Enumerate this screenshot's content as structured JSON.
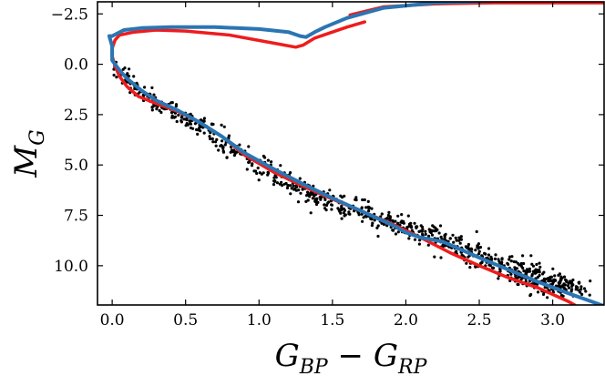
{
  "chart_data": {
    "type": "scatter",
    "title": "",
    "xlabel": "G_BP − G_RP",
    "ylabel": "M_G",
    "xlabel_parts": [
      "G",
      "BP",
      " − ",
      "G",
      "RP"
    ],
    "ylabel_parts": [
      "M",
      "G"
    ],
    "xlim": [
      -0.1,
      3.35
    ],
    "ylim": [
      11.95,
      -3.1
    ],
    "y_inverted": true,
    "grid": false,
    "x_ticks": [
      0.0,
      0.5,
      1.0,
      1.5,
      2.0,
      2.5,
      3.0
    ],
    "x_tick_labels": [
      "0.0",
      "0.5",
      "1.0",
      "1.5",
      "2.0",
      "2.5",
      "3.0"
    ],
    "y_ticks": [
      -2.5,
      0.0,
      2.5,
      5.0,
      7.5,
      10.0
    ],
    "y_tick_labels": [
      "−2.5",
      "0.0",
      "2.5",
      "5.0",
      "7.5",
      "10.0"
    ],
    "series": [
      {
        "name": "stars",
        "kind": "scatter",
        "color": "#000000",
        "ridge": [
          [
            0.02,
            -0.2
          ],
          [
            0.05,
            0.3
          ],
          [
            0.1,
            0.9
          ],
          [
            0.2,
            1.6
          ],
          [
            0.35,
            2.2
          ],
          [
            0.5,
            2.7
          ],
          [
            0.65,
            3.3
          ],
          [
            0.8,
            4.3
          ],
          [
            1.0,
            5.2
          ],
          [
            1.2,
            6.0
          ],
          [
            1.4,
            6.7
          ],
          [
            1.7,
            7.5
          ],
          [
            2.0,
            8.2
          ],
          [
            2.3,
            9.0
          ],
          [
            2.6,
            9.9
          ],
          [
            2.8,
            10.5
          ],
          [
            3.0,
            11.0
          ],
          [
            3.05,
            11.2
          ]
        ],
        "count": 900,
        "seed": 7
      },
      {
        "name": "isochrone-red",
        "kind": "line",
        "color": "#ee1c1c",
        "points": [
          [
            1.72,
            -2.1
          ],
          [
            1.6,
            -1.85
          ],
          [
            1.48,
            -1.55
          ],
          [
            1.38,
            -1.3
          ],
          [
            1.3,
            -0.95
          ],
          [
            1.25,
            -0.85
          ],
          [
            1.1,
            -1.05
          ],
          [
            0.8,
            -1.45
          ],
          [
            0.5,
            -1.65
          ],
          [
            0.3,
            -1.7
          ],
          [
            0.15,
            -1.6
          ],
          [
            0.05,
            -1.45
          ],
          [
            0.02,
            -1.2
          ],
          [
            0.0,
            -0.8
          ],
          [
            0.0,
            -0.4
          ],
          [
            0.02,
            0.1
          ],
          [
            0.05,
            0.6
          ],
          [
            0.1,
            1.1
          ],
          [
            0.18,
            1.6
          ],
          [
            0.3,
            1.95
          ],
          [
            0.45,
            2.35
          ],
          [
            0.6,
            2.9
          ],
          [
            0.75,
            3.6
          ],
          [
            0.9,
            4.5
          ],
          [
            1.1,
            5.35
          ],
          [
            1.3,
            6.05
          ],
          [
            1.5,
            6.7
          ],
          [
            1.7,
            7.3
          ],
          [
            1.9,
            7.9
          ],
          [
            2.1,
            8.6
          ],
          [
            2.3,
            9.35
          ],
          [
            2.5,
            10.0
          ],
          [
            2.7,
            10.6
          ],
          [
            2.9,
            11.1
          ],
          [
            3.1,
            11.75
          ],
          [
            3.15,
            11.95
          ]
        ]
      },
      {
        "name": "isochrone-red-giant",
        "kind": "line",
        "color": "#ee1c1c",
        "points": [
          [
            1.62,
            -2.45
          ],
          [
            1.85,
            -2.85
          ],
          [
            2.2,
            -3.0
          ],
          [
            2.6,
            -3.05
          ],
          [
            3.0,
            -3.05
          ],
          [
            3.35,
            -3.05
          ]
        ]
      },
      {
        "name": "isochrone-blue",
        "kind": "line",
        "color": "#2b75b3",
        "points": [
          [
            3.35,
            -3.2
          ],
          [
            3.0,
            -3.2
          ],
          [
            2.6,
            -3.15
          ],
          [
            2.2,
            -3.05
          ],
          [
            1.85,
            -2.8
          ],
          [
            1.6,
            -2.3
          ],
          [
            1.45,
            -1.85
          ],
          [
            1.38,
            -1.6
          ],
          [
            1.32,
            -1.35
          ],
          [
            1.28,
            -1.4
          ],
          [
            1.2,
            -1.6
          ],
          [
            1.0,
            -1.75
          ],
          [
            0.7,
            -1.85
          ],
          [
            0.4,
            -1.85
          ],
          [
            0.2,
            -1.8
          ],
          [
            0.08,
            -1.7
          ],
          [
            0.0,
            -1.4
          ],
          [
            -0.02,
            -1.4
          ],
          [
            0.0,
            -0.9
          ],
          [
            0.0,
            -0.2
          ],
          [
            0.05,
            0.3
          ],
          [
            0.1,
            0.7
          ],
          [
            0.2,
            1.3
          ],
          [
            0.3,
            1.8
          ],
          [
            0.45,
            2.3
          ],
          [
            0.6,
            2.9
          ],
          [
            0.75,
            3.6
          ],
          [
            0.9,
            4.4
          ],
          [
            1.1,
            5.2
          ],
          [
            1.3,
            5.95
          ],
          [
            1.5,
            6.65
          ],
          [
            1.7,
            7.3
          ],
          [
            1.9,
            7.95
          ],
          [
            2.0,
            8.35
          ],
          [
            2.1,
            8.6
          ],
          [
            2.25,
            8.8
          ],
          [
            2.5,
            9.6
          ],
          [
            2.7,
            10.2
          ],
          [
            2.9,
            10.8
          ],
          [
            3.1,
            11.35
          ],
          [
            3.35,
            12.0
          ]
        ]
      }
    ]
  }
}
